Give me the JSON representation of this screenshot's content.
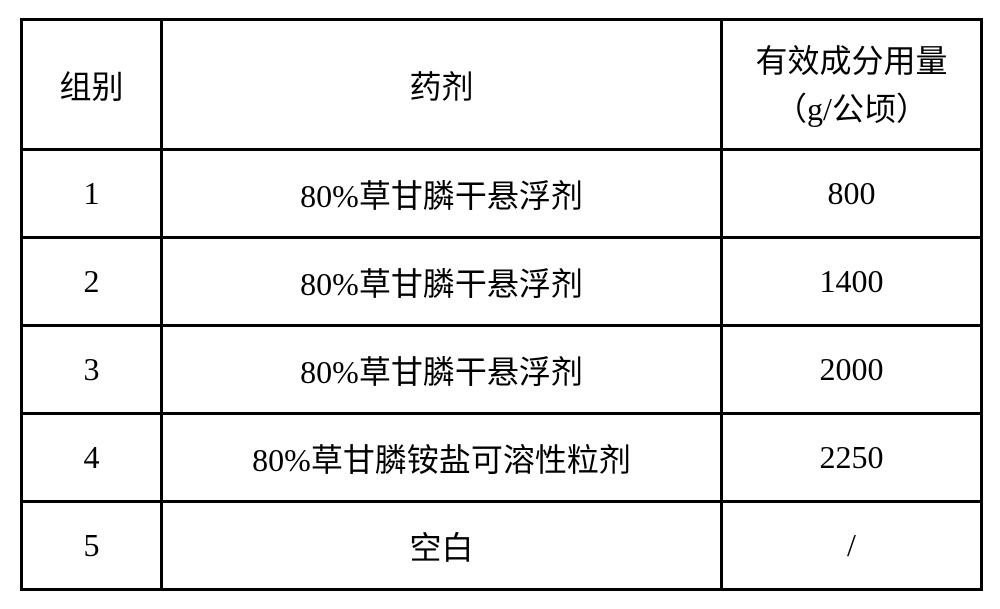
{
  "table": {
    "columns": {
      "group": "组别",
      "agent": "药剂",
      "amount_line1": "有效成分用量",
      "amount_line2": "（g/公顷）"
    },
    "rows": [
      {
        "group": "1",
        "agent": "80%草甘膦干悬浮剂",
        "amount": "800"
      },
      {
        "group": "2",
        "agent": "80%草甘膦干悬浮剂",
        "amount": "1400"
      },
      {
        "group": "3",
        "agent": "80%草甘膦干悬浮剂",
        "amount": "2000"
      },
      {
        "group": "4",
        "agent": "80%草甘膦铵盐可溶性粒剂",
        "amount": "2250"
      },
      {
        "group": "5",
        "agent": "空白",
        "amount": "/"
      }
    ],
    "styling": {
      "background_color": "#ffffff",
      "border_color": "#000000",
      "border_width": 3,
      "text_color": "#000000",
      "font_size": 32,
      "font_family": "SimSun",
      "header_row_height": 130,
      "data_row_height": 88,
      "col_widths": {
        "group": 140,
        "agent": 560,
        "amount": 260
      }
    }
  }
}
